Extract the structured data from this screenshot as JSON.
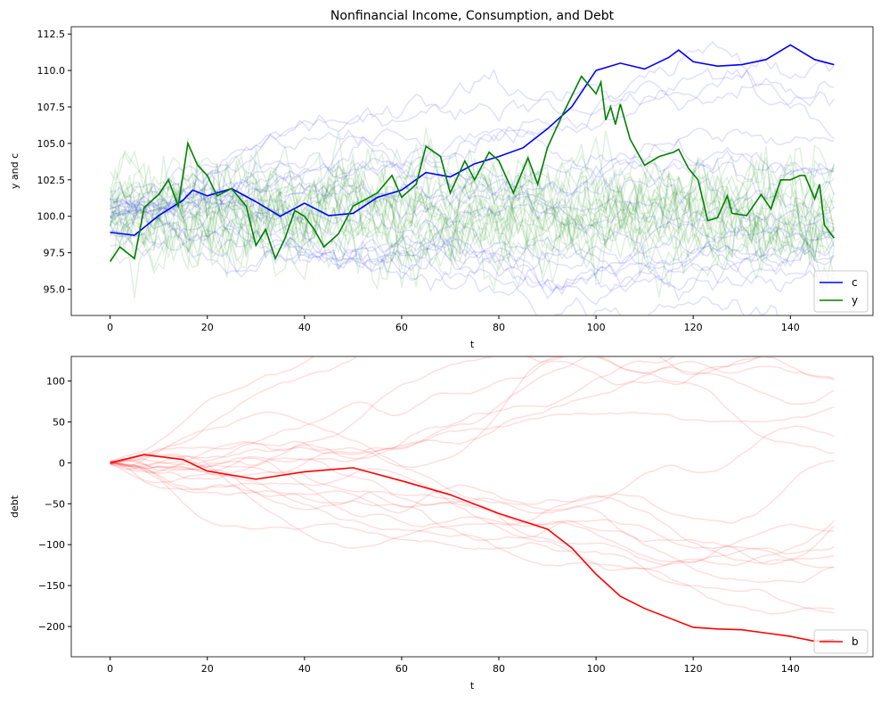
{
  "chart_data": [
    {
      "type": "line",
      "title": "Nonfinancial Income, Consumption, and Debt",
      "xlabel": "t",
      "ylabel": "y and c",
      "xlim": [
        -8,
        157
      ],
      "ylim": [
        93.2,
        113.0
      ],
      "xticks": [
        0,
        20,
        40,
        60,
        80,
        100,
        120,
        140
      ],
      "yticks": [
        "95.0",
        "97.5",
        "100.0",
        "102.5",
        "105.0",
        "107.5",
        "110.0",
        "112.5"
      ],
      "legend_placement": "lower-right",
      "series": [
        {
          "name": "c",
          "color": "#0000ff",
          "t": [
            0,
            5,
            10,
            15,
            17,
            20,
            25,
            30,
            35,
            40,
            45,
            50,
            55,
            60,
            65,
            70,
            75,
            80,
            85,
            90,
            95,
            98,
            100,
            105,
            110,
            115,
            117,
            120,
            125,
            130,
            135,
            140,
            145,
            149
          ],
          "values": [
            98.9,
            98.7,
            100.05,
            101.1,
            101.8,
            101.4,
            101.9,
            101.0,
            100.0,
            100.9,
            100.05,
            100.2,
            101.3,
            101.8,
            103.0,
            102.7,
            103.6,
            104.1,
            104.7,
            106.0,
            107.5,
            109.0,
            110.0,
            110.5,
            110.1,
            110.9,
            111.4,
            110.6,
            110.3,
            110.4,
            110.75,
            111.75,
            110.75,
            110.4
          ]
        },
        {
          "name": "y",
          "color": "#008000",
          "t": [
            0,
            2,
            5,
            7,
            10,
            12,
            14,
            16,
            18,
            20,
            22,
            25,
            28,
            30,
            32,
            34,
            36,
            38,
            40,
            42,
            44,
            47,
            50,
            55,
            58,
            60,
            63,
            65,
            68,
            70,
            73,
            75,
            78,
            80,
            83,
            86,
            88,
            90,
            93,
            97,
            100,
            101,
            102,
            103,
            104,
            105,
            107,
            110,
            113,
            116,
            117,
            119,
            121,
            123,
            125,
            127,
            128,
            131,
            134,
            136,
            138,
            140,
            142,
            143,
            145,
            146,
            147,
            148,
            149
          ],
          "values": [
            96.9,
            97.9,
            97.1,
            100.6,
            101.5,
            102.5,
            100.7,
            105.0,
            103.5,
            102.8,
            101.4,
            101.9,
            100.7,
            98.0,
            99.1,
            97.1,
            98.5,
            100.4,
            100.0,
            99.1,
            97.9,
            98.8,
            100.7,
            101.6,
            102.8,
            101.3,
            102.2,
            104.8,
            104.1,
            101.6,
            103.8,
            102.5,
            104.4,
            103.8,
            101.6,
            104.0,
            102.2,
            104.7,
            106.9,
            109.6,
            108.4,
            109.2,
            106.6,
            107.5,
            106.3,
            107.7,
            105.3,
            103.5,
            104.1,
            104.4,
            104.6,
            103.3,
            102.5,
            99.7,
            99.9,
            101.4,
            100.2,
            100.05,
            101.5,
            100.5,
            102.5,
            102.5,
            102.8,
            102.8,
            101.2,
            102.2,
            99.4,
            98.95,
            98.5
          ]
        }
      ],
      "background_paths": {
        "c_count": 20,
        "y_count": 20,
        "c_color": "#0000ff",
        "y_color": "#008000",
        "opacity": 0.12
      }
    },
    {
      "type": "line",
      "xlabel": "t",
      "ylabel": "debt",
      "xlim": [
        -8,
        157
      ],
      "ylim": [
        -237,
        130
      ],
      "xticks": [
        0,
        20,
        40,
        60,
        80,
        100,
        120,
        140
      ],
      "yticks": [
        -200,
        -150,
        -100,
        -50,
        0,
        50,
        100
      ],
      "legend_placement": "lower-right",
      "series": [
        {
          "name": "b",
          "color": "#ff0000",
          "t": [
            0,
            7,
            15,
            20,
            30,
            40,
            50,
            60,
            70,
            80,
            90,
            95,
            100,
            105,
            110,
            120,
            125,
            130,
            135,
            140,
            145,
            149
          ],
          "values": [
            0,
            10,
            4,
            -10,
            -20,
            -11,
            -6,
            -22,
            -39,
            -62,
            -81,
            -104,
            -136,
            -163,
            -178,
            -201,
            -203,
            -204,
            -208,
            -212,
            -218,
            -216
          ]
        }
      ],
      "background_paths": {
        "count": 20,
        "color": "#ff0000",
        "opacity": 0.13
      }
    }
  ]
}
